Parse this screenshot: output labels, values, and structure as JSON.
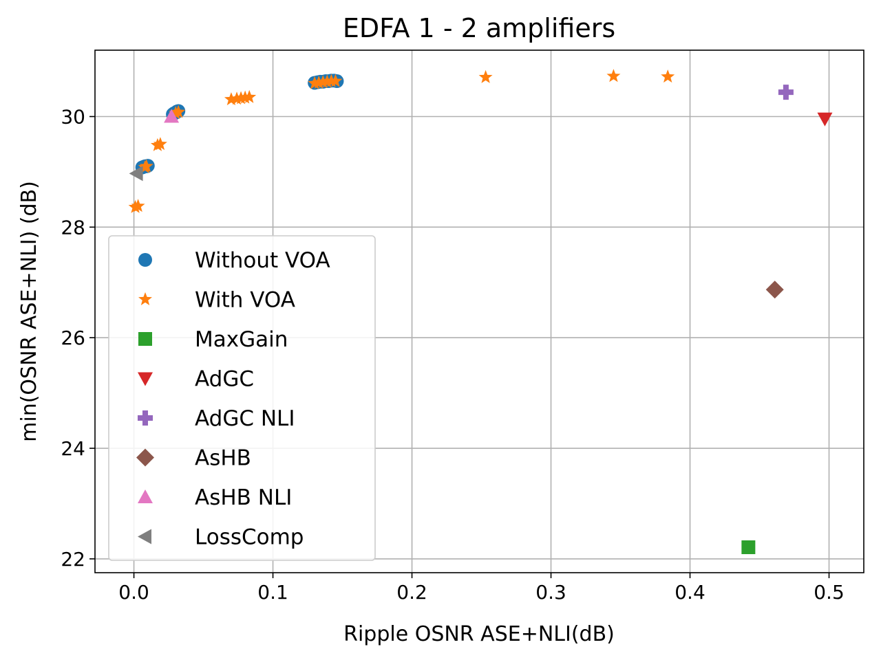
{
  "chart_data": {
    "type": "scatter",
    "title": "EDFA 1 - 2 amplifiers",
    "xlabel": "Ripple OSNR ASE+NLI(dB)",
    "ylabel": "min(OSNR ASE+NLI) (dB)",
    "xlim": [
      -0.028,
      0.525
    ],
    "ylim": [
      21.75,
      31.2
    ],
    "xticks": [
      0.0,
      0.1,
      0.2,
      0.3,
      0.4,
      0.5
    ],
    "xtick_labels": [
      "0.0",
      "0.1",
      "0.2",
      "0.3",
      "0.4",
      "0.5"
    ],
    "yticks": [
      22,
      24,
      26,
      28,
      30
    ],
    "ytick_labels": [
      "22",
      "24",
      "26",
      "28",
      "30"
    ],
    "grid": true,
    "legend_position": "center-left",
    "series": [
      {
        "name": "Without VOA",
        "marker": "circle",
        "color": "#1f77b4",
        "points": [
          [
            0.006,
            29.08
          ],
          [
            0.007,
            29.09
          ],
          [
            0.008,
            29.1
          ],
          [
            0.009,
            29.1
          ],
          [
            0.01,
            29.11
          ],
          [
            0.028,
            30.04
          ],
          [
            0.029,
            30.06
          ],
          [
            0.03,
            30.07
          ],
          [
            0.031,
            30.09
          ],
          [
            0.032,
            30.1
          ],
          [
            0.13,
            30.61
          ],
          [
            0.132,
            30.62
          ],
          [
            0.134,
            30.63
          ],
          [
            0.136,
            30.63
          ],
          [
            0.138,
            30.64
          ],
          [
            0.14,
            30.64
          ],
          [
            0.142,
            30.65
          ],
          [
            0.144,
            30.65
          ],
          [
            0.146,
            30.64
          ]
        ]
      },
      {
        "name": "With VOA",
        "marker": "star",
        "color": "#ff7f0e",
        "points": [
          [
            0.001,
            28.36
          ],
          [
            0.003,
            28.38
          ],
          [
            0.008,
            29.08
          ],
          [
            0.009,
            29.1
          ],
          [
            0.017,
            29.48
          ],
          [
            0.019,
            29.5
          ],
          [
            0.03,
            30.06
          ],
          [
            0.032,
            30.08
          ],
          [
            0.07,
            30.31
          ],
          [
            0.074,
            30.32
          ],
          [
            0.077,
            30.33
          ],
          [
            0.08,
            30.34
          ],
          [
            0.083,
            30.35
          ],
          [
            0.13,
            30.6
          ],
          [
            0.133,
            30.61
          ],
          [
            0.136,
            30.62
          ],
          [
            0.139,
            30.63
          ],
          [
            0.142,
            30.64
          ],
          [
            0.145,
            30.64
          ],
          [
            0.253,
            30.71
          ],
          [
            0.345,
            30.73
          ],
          [
            0.384,
            30.72
          ]
        ]
      },
      {
        "name": "MaxGain",
        "marker": "square",
        "color": "#2ca02c",
        "points": [
          [
            0.442,
            22.21
          ]
        ]
      },
      {
        "name": "AdGC",
        "marker": "triangle-down",
        "color": "#d62728",
        "points": [
          [
            0.497,
            29.96
          ]
        ]
      },
      {
        "name": "AdGC NLI",
        "marker": "plus",
        "color": "#9467bd",
        "points": [
          [
            0.469,
            30.44
          ]
        ]
      },
      {
        "name": "AsHB",
        "marker": "diamond",
        "color": "#8c564b",
        "points": [
          [
            0.461,
            26.87
          ]
        ]
      },
      {
        "name": "AsHB NLI",
        "marker": "triangle-up",
        "color": "#e377c2",
        "points": [
          [
            0.027,
            30.0
          ]
        ]
      },
      {
        "name": "LossComp",
        "marker": "triangle-left",
        "color": "#7f7f7f",
        "points": [
          [
            0.002,
            28.97
          ]
        ]
      }
    ]
  }
}
